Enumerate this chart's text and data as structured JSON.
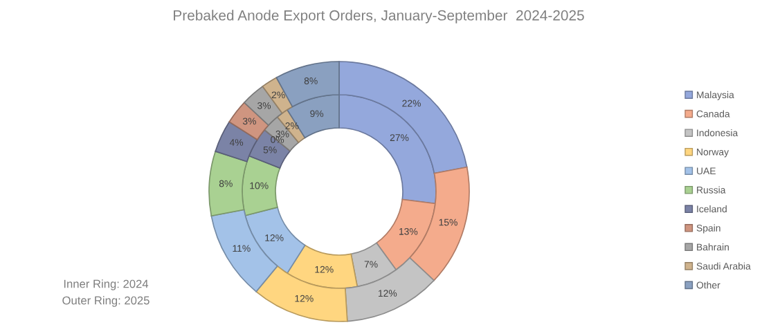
{
  "chart_data": {
    "type": "donut",
    "title": "Prebaked Anode Export Orders, January-September  2024-2025",
    "categories": [
      "Malaysia",
      "Canada",
      "Indonesia",
      "Norway",
      "UAE",
      "Russia",
      "Iceland",
      "Spain",
      "Bahrain",
      "Saudi Arabia",
      "Other"
    ],
    "colors": [
      "#94a8dc",
      "#f4ab8c",
      "#c4c4c4",
      "#ffd680",
      "#a3c2e8",
      "#a9d192",
      "#7b83a6",
      "#cf9580",
      "#a6a6a6",
      "#cfb38d",
      "#8aa0c0"
    ],
    "series": [
      {
        "values": [
          27,
          13,
          7,
          12,
          12,
          10,
          5,
          0,
          3,
          2,
          9
        ],
        "value_labels": [
          "27%",
          "13%",
          "7%",
          "12%",
          "12%",
          "10%",
          "5%",
          "0%",
          "3%",
          "2%",
          "9%"
        ]
      },
      {
        "values": [
          22,
          15,
          12,
          12,
          11,
          8,
          4,
          3,
          3,
          2,
          8
        ],
        "value_labels": [
          "22%",
          "15%",
          "12%",
          "12%",
          "11%",
          "8%",
          "4%",
          "3%",
          "3%",
          "2%",
          "8%"
        ]
      }
    ],
    "legend": "right",
    "annotations": [
      "Inner Ring: 2024",
      "Outer Ring: 2025"
    ]
  }
}
